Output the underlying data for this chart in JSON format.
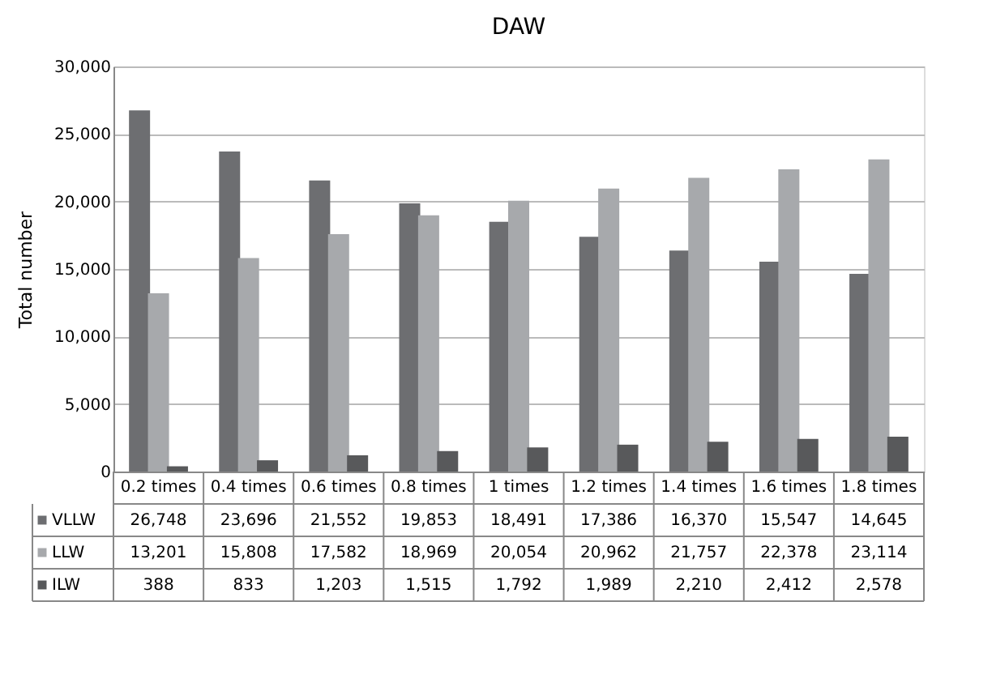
{
  "chart_data": {
    "type": "bar",
    "title": "DAW",
    "ylabel": "Total number",
    "categories": [
      "0.2 times",
      "0.4 times",
      "0.6 times",
      "0.8 times",
      "1 times",
      "1.2 times",
      "1.4 times",
      "1.6 times",
      "1.8 times"
    ],
    "series": [
      {
        "name": "VLLW",
        "color": "#6d6e71",
        "values": [
          26748,
          23696,
          21552,
          19853,
          18491,
          17386,
          16370,
          15547,
          14645
        ],
        "value_labels": [
          "26,748",
          "23,696",
          "21,552",
          "19,853",
          "18,491",
          "17,386",
          "16,370",
          "15,547",
          "14,645"
        ]
      },
      {
        "name": "LLW",
        "color": "#a7a9ac",
        "values": [
          13201,
          15808,
          17582,
          18969,
          20054,
          20962,
          21757,
          22378,
          23114
        ],
        "value_labels": [
          "13,201",
          "15,808",
          "17,582",
          "18,969",
          "20,054",
          "20,962",
          "21,757",
          "22,378",
          "23,114"
        ]
      },
      {
        "name": "ILW",
        "color": "#58595b",
        "values": [
          388,
          833,
          1203,
          1515,
          1792,
          1989,
          2210,
          2412,
          2578
        ],
        "value_labels": [
          "388",
          "833",
          "1,203",
          "1,515",
          "1,792",
          "1,989",
          "2,210",
          "2,412",
          "2,578"
        ]
      }
    ],
    "ylim": [
      0,
      30000
    ],
    "yticks": [
      {
        "value": 0,
        "label": "0"
      },
      {
        "value": 5000,
        "label": "5,000"
      },
      {
        "value": 10000,
        "label": "10,000"
      },
      {
        "value": 15000,
        "label": "15,000"
      },
      {
        "value": 20000,
        "label": "20,000"
      },
      {
        "value": 25000,
        "label": "25,000"
      },
      {
        "value": 30000,
        "label": "30,000"
      }
    ],
    "grid": "y",
    "legend": "bottom left"
  }
}
